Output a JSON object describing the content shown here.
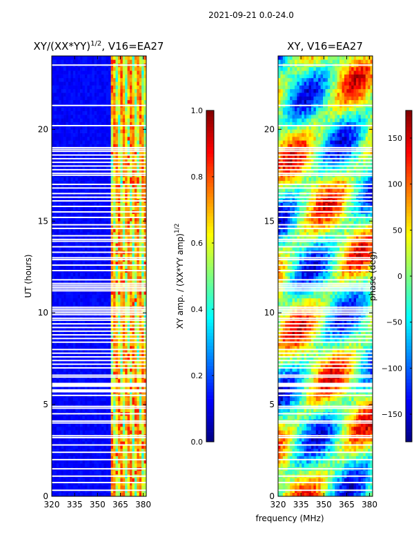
{
  "figure_title": "2021-09-21 0.0-24.0",
  "colors": {
    "jet": [
      "#00007f",
      "#0000ff",
      "#007fff",
      "#00ffff",
      "#7fff7f",
      "#ffff00",
      "#ff7f00",
      "#ff0000",
      "#7f0000"
    ],
    "gap": "#ffffff",
    "frame": "#000000"
  },
  "chart_data": [
    {
      "type": "heatmap",
      "title_text": "XY/(XX*YY)",
      "title_exp": "1/2",
      "title_suffix": ", V16=EA27",
      "xlabel": "",
      "ylabel": "UT (hours)",
      "xlim": [
        320,
        382
      ],
      "ylim": [
        0,
        24
      ],
      "xticks": [
        {
          "v": 320,
          "l": "320"
        },
        {
          "v": 335,
          "l": "335"
        },
        {
          "v": 350,
          "l": "350"
        },
        {
          "v": 365,
          "l": "365"
        },
        {
          "v": 380,
          "l": "380"
        }
      ],
      "yticks": [
        {
          "v": 0,
          "l": "0"
        },
        {
          "v": 5,
          "l": "5"
        },
        {
          "v": 10,
          "l": "10"
        },
        {
          "v": 15,
          "l": "15"
        },
        {
          "v": 20,
          "l": "20"
        }
      ],
      "colorbar": {
        "range": [
          0,
          1
        ],
        "ticks": [
          {
            "v": 0,
            "l": "0.0"
          },
          {
            "v": 0.2,
            "l": "0.2"
          },
          {
            "v": 0.4,
            "l": "0.4"
          },
          {
            "v": 0.6,
            "l": "0.6"
          },
          {
            "v": 0.8,
            "l": "0.8"
          },
          {
            "v": 1.0,
            "l": "1.0"
          }
        ],
        "label_text": "XY amp. / (XX*YY amp)",
        "label_exp": "1/2"
      },
      "value_description": "Normalized cross-correlation amplitude: mostly 0.05-0.25 (blue) from 320-358 MHz, higher 0.3-0.8 (cyan-yellow, occasional red) between ~358 and ~382 MHz"
    },
    {
      "type": "heatmap",
      "title_text": "XY, V16=EA27",
      "xlabel": "frequency (MHz)",
      "ylabel": "",
      "xlim": [
        320,
        382
      ],
      "ylim": [
        0,
        24
      ],
      "xticks": [
        {
          "v": 320,
          "l": "320"
        },
        {
          "v": 335,
          "l": "335"
        },
        {
          "v": 350,
          "l": "350"
        },
        {
          "v": 365,
          "l": "365"
        },
        {
          "v": 380,
          "l": "380"
        }
      ],
      "yticks": [
        {
          "v": 0,
          "l": "0"
        },
        {
          "v": 5,
          "l": "5"
        },
        {
          "v": 10,
          "l": "10"
        },
        {
          "v": 15,
          "l": "15"
        },
        {
          "v": 20,
          "l": "20"
        }
      ],
      "colorbar": {
        "range": [
          -180,
          180
        ],
        "ticks": [
          {
            "v": -150,
            "l": "−150"
          },
          {
            "v": -100,
            "l": "−100"
          },
          {
            "v": -50,
            "l": "−50"
          },
          {
            "v": 0,
            "l": "0"
          },
          {
            "v": 50,
            "l": "50"
          },
          {
            "v": 100,
            "l": "100"
          },
          {
            "v": 150,
            "l": "150"
          }
        ],
        "label_text": "phase (deg)"
      },
      "value_description": "Cross-correlation phase in degrees, strongly varying with time and frequency (-180 to 180)"
    }
  ],
  "flagged_hours": [
    0.33,
    0.75,
    1.1,
    1.5,
    2.0,
    2.4,
    2.8,
    3.2,
    3.3,
    4.0,
    4.1,
    4.5,
    4.8,
    4.9,
    5.5,
    5.7,
    5.75,
    5.8,
    6.0,
    6.05,
    6.1,
    6.15,
    6.5,
    6.6,
    7.0,
    7.2,
    7.4,
    7.6,
    7.8,
    8.0,
    8.4,
    8.6,
    8.8,
    9.0,
    9.2,
    9.4,
    9.6,
    9.7,
    9.9,
    10.0,
    10.1,
    10.2,
    10.3,
    11.2,
    11.3,
    11.4,
    11.5,
    11.6,
    11.8,
    12.3,
    12.6,
    12.9,
    13.0,
    13.3,
    13.6,
    13.9,
    14.0,
    14.2,
    14.6,
    14.8,
    15.2,
    15.5,
    15.8,
    16.1,
    16.3,
    16.5,
    16.8,
    17.0,
    17.5,
    17.6,
    17.8,
    18.0,
    18.2,
    18.4,
    18.6,
    18.8,
    18.9,
    19.0,
    20.2,
    21.3,
    23.5
  ]
}
